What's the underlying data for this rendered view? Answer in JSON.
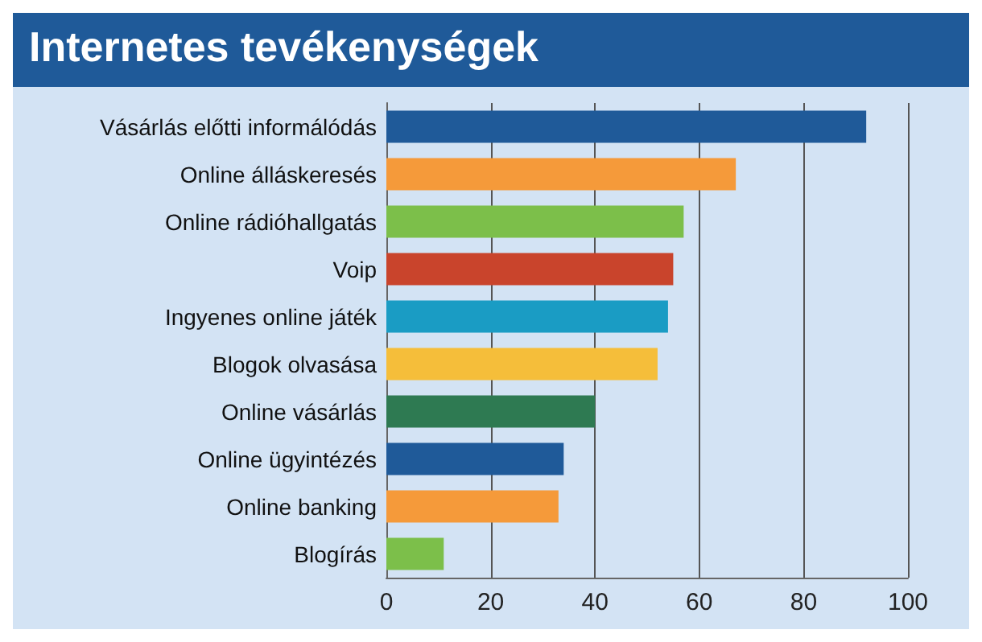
{
  "chart_data": {
    "type": "bar",
    "orientation": "horizontal",
    "title": "Internetes tevékenységek",
    "categories": [
      "Vásárlás előtti informálódás",
      "Online álláskeresés",
      "Online rádióhallgatás",
      "Voip",
      "Ingyenes online játék",
      "Blogok olvasása",
      "Online vásárlás",
      "Online ügyintézés",
      "Online banking",
      "Blogírás"
    ],
    "values": [
      92,
      67,
      57,
      55,
      54,
      52,
      40,
      34,
      33,
      11
    ],
    "colors": [
      "#1f5a99",
      "#f59a3a",
      "#7cbf4a",
      "#c9442c",
      "#1a9cc4",
      "#f5be3a",
      "#2e7a52",
      "#1f5a99",
      "#f59a3a",
      "#7cbf4a"
    ],
    "xlim": [
      0,
      100
    ],
    "xticks": [
      0,
      20,
      40,
      60,
      80,
      100
    ],
    "grid": "x"
  }
}
